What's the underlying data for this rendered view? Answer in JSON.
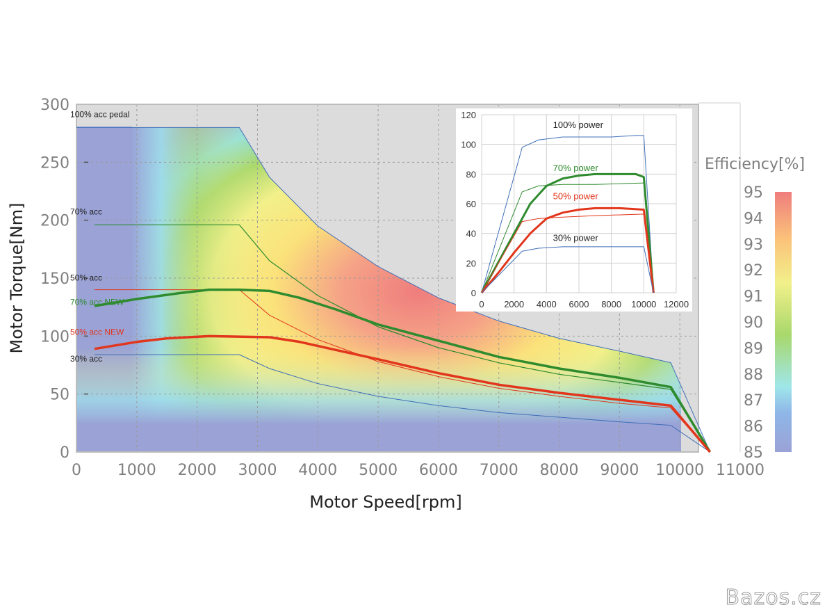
{
  "watermark": "Bazos.cz",
  "colors": {
    "region_gray": "#dcdcdc",
    "low_blue": "#9aa2d6",
    "green": "#2e8b2e",
    "red": "#e2361c",
    "blue_line": "#3f6fb8"
  },
  "chart_data": [
    {
      "type": "line",
      "title": "",
      "xlabel": "Motor Speed[rpm]",
      "ylabel": "Motor Torque[Nm]",
      "xlim": [
        0,
        11000
      ],
      "ylim": [
        0,
        300
      ],
      "xticks": [
        "0",
        "1000",
        "2000",
        "3000",
        "4000",
        "5000",
        "6000",
        "7000",
        "8000",
        "9000",
        "10000",
        "11000"
      ],
      "yticks": [
        "0",
        "50",
        "100",
        "150",
        "200",
        "250",
        "300"
      ],
      "colorbar": {
        "title": "Efficiency[%]",
        "range": [
          85,
          95
        ],
        "ticks": [
          "85",
          "86",
          "87",
          "88",
          "89",
          "90",
          "91",
          "92",
          "93",
          "94",
          "95"
        ]
      },
      "max_torque_envelope": [
        [
          0,
          280
        ],
        [
          2700,
          280
        ],
        [
          3200,
          237
        ],
        [
          4000,
          195
        ],
        [
          5000,
          160
        ],
        [
          6000,
          133
        ],
        [
          7000,
          113
        ],
        [
          8000,
          98
        ],
        [
          9000,
          87
        ],
        [
          9850,
          77
        ],
        [
          10500,
          0
        ]
      ],
      "series": [
        {
          "name": "100% acc pedal",
          "color": "#3f6fb8",
          "width": 1,
          "points": [
            [
              0,
              280
            ],
            [
              2700,
              280
            ],
            [
              3200,
              237
            ],
            [
              4000,
              195
            ],
            [
              5000,
              160
            ],
            [
              6000,
              133
            ],
            [
              7000,
              113
            ],
            [
              8000,
              98
            ],
            [
              9000,
              87
            ],
            [
              9850,
              77
            ],
            [
              10500,
              0
            ]
          ]
        },
        {
          "name": "70% acc",
          "color": "#2e8b2e",
          "width": 1.2,
          "points": [
            [
              300,
              196
            ],
            [
              2700,
              196
            ],
            [
              3200,
              165
            ],
            [
              4000,
              135
            ],
            [
              5000,
              108
            ],
            [
              6000,
              90
            ],
            [
              7000,
              77
            ],
            [
              8000,
              67
            ],
            [
              9000,
              60
            ],
            [
              9850,
              54
            ],
            [
              10500,
              0
            ]
          ]
        },
        {
          "name": "50% acc",
          "color": "#e2361c",
          "width": 1,
          "points": [
            [
              300,
              140
            ],
            [
              2700,
              140
            ],
            [
              3200,
              118
            ],
            [
              4000,
              97
            ],
            [
              5000,
              78
            ],
            [
              6000,
              65
            ],
            [
              7000,
              55
            ],
            [
              8000,
              48
            ],
            [
              9000,
              42
            ],
            [
              9850,
              38
            ],
            [
              10500,
              0
            ]
          ]
        },
        {
          "name": "30% acc",
          "color": "#3f6fb8",
          "width": 1,
          "points": [
            [
              300,
              84
            ],
            [
              2700,
              84
            ],
            [
              3200,
              72
            ],
            [
              4000,
              59
            ],
            [
              5000,
              48
            ],
            [
              6000,
              40
            ],
            [
              7000,
              34
            ],
            [
              8000,
              30
            ],
            [
              9000,
              26
            ],
            [
              9850,
              23
            ],
            [
              10500,
              0
            ]
          ]
        },
        {
          "name": "70% acc NEW",
          "color": "#2e8b2e",
          "width": 3.5,
          "points": [
            [
              300,
              126
            ],
            [
              1000,
              132
            ],
            [
              1700,
              137
            ],
            [
              2200,
              140
            ],
            [
              2700,
              140
            ],
            [
              3200,
              139
            ],
            [
              3700,
              133
            ],
            [
              4300,
              123
            ],
            [
              5000,
              110
            ],
            [
              6000,
              96
            ],
            [
              7000,
              82
            ],
            [
              8000,
              72
            ],
            [
              9000,
              64
            ],
            [
              9850,
              56
            ],
            [
              10500,
              0
            ]
          ]
        },
        {
          "name": "50% acc NEW",
          "color": "#e2361c",
          "width": 3.5,
          "points": [
            [
              300,
              89
            ],
            [
              1000,
              95
            ],
            [
              1500,
              98
            ],
            [
              2200,
              100
            ],
            [
              3200,
              99
            ],
            [
              3700,
              95
            ],
            [
              4300,
              88
            ],
            [
              5000,
              80
            ],
            [
              6000,
              68
            ],
            [
              7000,
              58
            ],
            [
              8000,
              51
            ],
            [
              9000,
              45
            ],
            [
              9850,
              40
            ],
            [
              10500,
              0
            ]
          ]
        }
      ],
      "labels": [
        {
          "text": "100% acc pedal",
          "color": "#222222",
          "x": 300,
          "y": 289
        },
        {
          "text": "70% acc",
          "color": "#222222",
          "x": 300,
          "y": 205
        },
        {
          "text": "50% acc",
          "color": "#222222",
          "x": 300,
          "y": 148
        },
        {
          "text": "70% acc NEW",
          "color": "#2e8b2e",
          "x": 300,
          "y": 127
        },
        {
          "text": "50% acc NEW",
          "color": "#e2361c",
          "x": 300,
          "y": 101
        },
        {
          "text": "30% acc",
          "color": "#222222",
          "x": 300,
          "y": 78
        }
      ]
    },
    {
      "type": "line",
      "title": "",
      "xlabel": "",
      "ylabel": "",
      "xlim": [
        0,
        12000
      ],
      "ylim": [
        0,
        120
      ],
      "xticks": [
        "0",
        "2000",
        "4000",
        "6000",
        "8000",
        "10000",
        "12000"
      ],
      "yticks": [
        "0",
        "20",
        "40",
        "60",
        "80",
        "100",
        "120"
      ],
      "series": [
        {
          "name": "100% power",
          "color": "#3f6fb8",
          "width": 1,
          "points": [
            [
              0,
              0
            ],
            [
              2500,
              98
            ],
            [
              3500,
              103
            ],
            [
              5000,
              105
            ],
            [
              6500,
              105
            ],
            [
              8000,
              105
            ],
            [
              9500,
              106
            ],
            [
              10000,
              106
            ],
            [
              10600,
              0
            ]
          ]
        },
        {
          "name": "70% power thin",
          "color": "#2e8b2e",
          "width": 1,
          "points": [
            [
              0,
              0
            ],
            [
              2500,
              68
            ],
            [
              3500,
              72
            ],
            [
              5000,
              73
            ],
            [
              7000,
              73
            ],
            [
              10000,
              74
            ],
            [
              10600,
              0
            ]
          ]
        },
        {
          "name": "70% power",
          "color": "#2e8b2e",
          "width": 3,
          "points": [
            [
              0,
              0
            ],
            [
              1000,
              20
            ],
            [
              2000,
              40
            ],
            [
              3000,
              60
            ],
            [
              4000,
              72
            ],
            [
              5000,
              77
            ],
            [
              6000,
              79
            ],
            [
              7000,
              80
            ],
            [
              8000,
              80
            ],
            [
              9500,
              80
            ],
            [
              10000,
              78
            ],
            [
              10600,
              0
            ]
          ]
        },
        {
          "name": "50% power thin",
          "color": "#e2361c",
          "width": 1,
          "points": [
            [
              0,
              0
            ],
            [
              2500,
              48
            ],
            [
              3500,
              50
            ],
            [
              5000,
              51
            ],
            [
              7000,
              52
            ],
            [
              10000,
              53
            ],
            [
              10600,
              0
            ]
          ]
        },
        {
          "name": "50% power",
          "color": "#e2361c",
          "width": 3,
          "points": [
            [
              0,
              0
            ],
            [
              1000,
              13
            ],
            [
              2000,
              27
            ],
            [
              3000,
              40
            ],
            [
              4000,
              50
            ],
            [
              5000,
              54
            ],
            [
              6000,
              56
            ],
            [
              7000,
              57
            ],
            [
              8500,
              57
            ],
            [
              10000,
              56
            ],
            [
              10600,
              0
            ]
          ]
        },
        {
          "name": "30% power",
          "color": "#3f6fb8",
          "width": 1,
          "points": [
            [
              0,
              0
            ],
            [
              2500,
              28
            ],
            [
              3500,
              30
            ],
            [
              5000,
              31
            ],
            [
              7000,
              31
            ],
            [
              10000,
              31
            ],
            [
              10600,
              0
            ]
          ]
        }
      ],
      "labels": [
        {
          "text": "100% power",
          "color": "#222222",
          "x": 4400,
          "y": 111
        },
        {
          "text": "70% power",
          "color": "#2e8b2e",
          "x": 4400,
          "y": 82
        },
        {
          "text": "50% power",
          "color": "#e2361c",
          "x": 4400,
          "y": 63
        },
        {
          "text": "30% power",
          "color": "#222222",
          "x": 4400,
          "y": 35
        }
      ]
    }
  ]
}
